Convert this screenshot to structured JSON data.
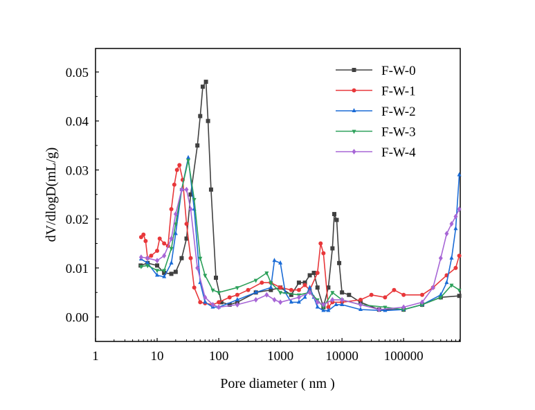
{
  "chart_data": {
    "type": "line",
    "title": "",
    "xlabel": "Pore diameter ( nm )",
    "ylabel": "dV/dlogD(mL/g)",
    "xscale": "log",
    "xlim": [
      1,
      830000
    ],
    "ylim": [
      -0.005,
      0.0548
    ],
    "xticks": [
      1,
      10,
      100,
      1000,
      10000,
      100000
    ],
    "xtick_labels": [
      "1",
      "10",
      "100",
      "1000",
      "10000",
      "100000"
    ],
    "yticks": [
      0,
      0.01,
      0.02,
      0.03,
      0.04,
      0.05
    ],
    "ytick_labels": [
      "0.00",
      "0.01",
      "0.02",
      "0.03",
      "0.04",
      "0.05"
    ],
    "grid": false,
    "legend_position": "top-right",
    "series": [
      {
        "name": "F-W-0",
        "color": "#404040",
        "marker": "square",
        "x": [
          5.4,
          7,
          10,
          13,
          17,
          20,
          25,
          30,
          35,
          45,
          50,
          55,
          62,
          67,
          75,
          90,
          110,
          150,
          200,
          400,
          700,
          1000,
          1500,
          2000,
          2500,
          3000,
          3500,
          4000,
          5000,
          6000,
          7000,
          7500,
          8200,
          9000,
          10000,
          13000,
          20000,
          40000,
          100000,
          200000,
          400000,
          800000
        ],
        "y": [
          0.0105,
          0.011,
          0.0105,
          0.009,
          0.0088,
          0.0092,
          0.012,
          0.016,
          0.025,
          0.035,
          0.041,
          0.047,
          0.048,
          0.04,
          0.026,
          0.008,
          0.003,
          0.0025,
          0.003,
          0.005,
          0.0055,
          0.006,
          0.0045,
          0.007,
          0.007,
          0.0085,
          0.009,
          0.006,
          0.002,
          0.006,
          0.014,
          0.021,
          0.0198,
          0.011,
          0.005,
          0.0045,
          0.003,
          0.0015,
          0.0015,
          0.0025,
          0.004,
          0.0043
        ]
      },
      {
        "name": "F-W-1",
        "color": "#e8373a",
        "marker": "circle",
        "x": [
          5.5,
          6,
          6.5,
          7,
          8,
          10,
          11,
          13,
          15,
          17,
          19,
          21,
          23,
          26,
          30,
          35,
          40,
          50,
          60,
          80,
          100,
          150,
          200,
          300,
          500,
          700,
          1000,
          1500,
          2000,
          2500,
          3000,
          4000,
          4500,
          5000,
          6000,
          7000,
          10000,
          20000,
          30000,
          50000,
          70000,
          100000,
          200000,
          300000,
          500000,
          700000,
          800000
        ],
        "y": [
          0.0163,
          0.0168,
          0.0155,
          0.012,
          0.0125,
          0.0135,
          0.016,
          0.015,
          0.0145,
          0.022,
          0.027,
          0.03,
          0.031,
          0.028,
          0.019,
          0.012,
          0.006,
          0.003,
          0.0028,
          0.0025,
          0.003,
          0.004,
          0.0045,
          0.0055,
          0.007,
          0.007,
          0.006,
          0.0055,
          0.0055,
          0.0065,
          0.0055,
          0.009,
          0.015,
          0.013,
          0.002,
          0.003,
          0.003,
          0.0035,
          0.0045,
          0.004,
          0.0055,
          0.0045,
          0.0045,
          0.006,
          0.0085,
          0.01,
          0.0125
        ]
      },
      {
        "name": "F-W-2",
        "color": "#1a6bd6",
        "marker": "triangle-up",
        "x": [
          5.5,
          7,
          10,
          13,
          17,
          20,
          25,
          32,
          40,
          50,
          60,
          80,
          100,
          200,
          400,
          700,
          800,
          1000,
          1200,
          1500,
          2000,
          2500,
          3000,
          3500,
          4000,
          5000,
          6000,
          8000,
          10000,
          20000,
          50000,
          100000,
          200000,
          400000,
          500000,
          600000,
          700000,
          800000
        ],
        "y": [
          0.0118,
          0.011,
          0.0085,
          0.0082,
          0.011,
          0.017,
          0.026,
          0.0325,
          0.022,
          0.007,
          0.003,
          0.002,
          0.002,
          0.0035,
          0.005,
          0.006,
          0.0115,
          0.011,
          0.005,
          0.003,
          0.003,
          0.004,
          0.006,
          0.004,
          0.002,
          0.0013,
          0.0013,
          0.0025,
          0.0025,
          0.0015,
          0.0013,
          0.0015,
          0.0025,
          0.0045,
          0.007,
          0.012,
          0.018,
          0.029
        ]
      },
      {
        "name": "F-W-3",
        "color": "#2ca05a",
        "marker": "triangle-down",
        "x": [
          5.5,
          7,
          10,
          13,
          17,
          20,
          25,
          32,
          40,
          50,
          60,
          80,
          100,
          200,
          400,
          600,
          700,
          1000,
          2000,
          3000,
          4000,
          5000,
          7000,
          10000,
          20000,
          50000,
          100000,
          200000,
          400000,
          600000,
          800000
        ],
        "y": [
          0.0103,
          0.0105,
          0.0095,
          0.0095,
          0.014,
          0.019,
          0.026,
          0.032,
          0.024,
          0.012,
          0.0085,
          0.0055,
          0.005,
          0.006,
          0.0075,
          0.009,
          0.007,
          0.005,
          0.0045,
          0.005,
          0.0035,
          0.002,
          0.005,
          0.0035,
          0.0025,
          0.002,
          0.0015,
          0.0025,
          0.004,
          0.0065,
          0.0055
        ]
      },
      {
        "name": "F-W-4",
        "color": "#a766d6",
        "marker": "diamond",
        "x": [
          5.5,
          7,
          10,
          13,
          17,
          20,
          25,
          30,
          35,
          45,
          60,
          80,
          100,
          200,
          400,
          600,
          800,
          1000,
          2000,
          3000,
          4000,
          5000,
          7000,
          10000,
          20000,
          40000,
          100000,
          200000,
          300000,
          400000,
          500000,
          600000,
          700000,
          800000
        ],
        "y": [
          0.0122,
          0.012,
          0.0115,
          0.0125,
          0.016,
          0.021,
          0.026,
          0.026,
          0.022,
          0.01,
          0.004,
          0.0025,
          0.002,
          0.0025,
          0.0035,
          0.0045,
          0.0035,
          0.003,
          0.004,
          0.005,
          0.003,
          0.0025,
          0.0035,
          0.0035,
          0.0025,
          0.0015,
          0.002,
          0.003,
          0.006,
          0.012,
          0.017,
          0.019,
          0.0205,
          0.022
        ]
      }
    ]
  }
}
